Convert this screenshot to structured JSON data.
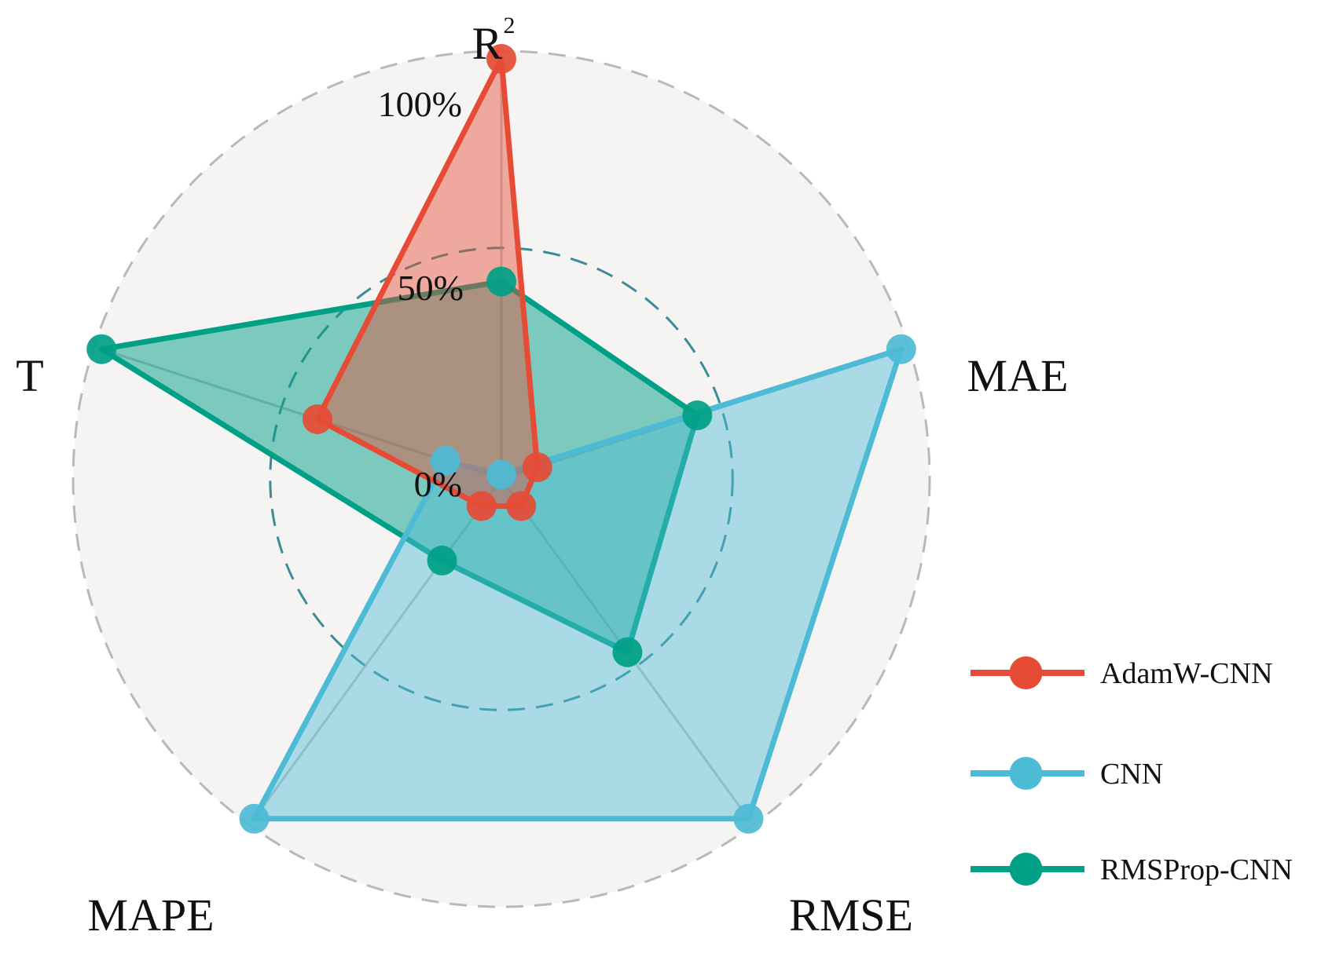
{
  "chart_data": {
    "type": "radar",
    "axes": [
      "R2",
      "MAE",
      "RMSE",
      "MAPE",
      "T"
    ],
    "axis_labels": {
      "R2_base": "R",
      "R2_sup": "2",
      "MAE": "MAE",
      "RMSE": "RMSE",
      "MAPE": "MAPE",
      "T": "T"
    },
    "radial_ticks": [
      "0%",
      "50%",
      "100%"
    ],
    "radial_tick_values": [
      0,
      50,
      100
    ],
    "rlim": [
      0,
      100
    ],
    "grid": true,
    "legend_position": "right",
    "series": [
      {
        "name": "AdamW-CNN",
        "color": "#E64B35",
        "values": [
          100,
          9,
          8,
          8,
          46
        ]
      },
      {
        "name": "CNN",
        "color": "#4DBBD5",
        "values": [
          1,
          100,
          100,
          100,
          14
        ]
      },
      {
        "name": "RMSProp-CNN",
        "color": "#00A087",
        "values": [
          47,
          49,
          51,
          24,
          100
        ]
      }
    ]
  }
}
